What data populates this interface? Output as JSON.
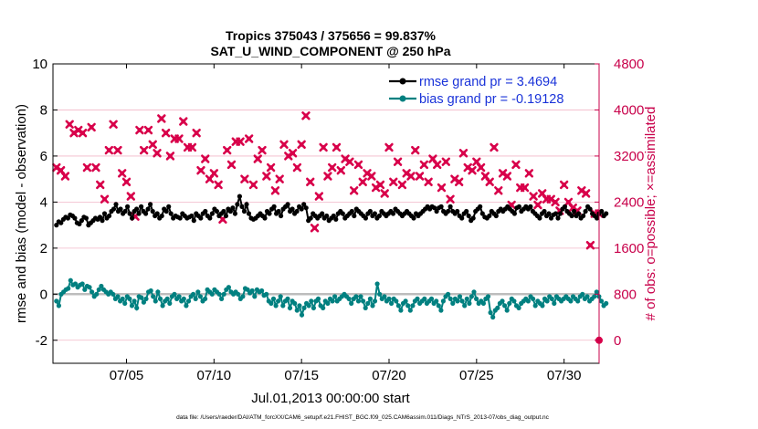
{
  "chart_data": {
    "type": "line",
    "title_line1": "Tropics 375043 / 375656 = 99.837%",
    "title_line2": "SAT_U_WIND_COMPONENT @ 250 hPa",
    "xlabel": "Jul.01,2013 00:00:00 start",
    "ylabel_left": "rmse and bias (model - observation)",
    "ylabel_right": "# of obs: o=possible; ×=assimilated",
    "footnote": "data file: /Users/raeder/DAI/ATM_forcXX/CAM6_setup/f.e21.FHIST_BGC.f09_025.CAM6assim.011/Diags_NTrS_2013-07/obs_diag_output.nc",
    "xlim": [
      0.8,
      32
    ],
    "x_ticks": [
      5,
      10,
      15,
      20,
      25,
      30
    ],
    "x_tick_labels": [
      "07/05",
      "07/10",
      "07/15",
      "07/20",
      "07/25",
      "07/30"
    ],
    "ylim_left": [
      -3,
      10
    ],
    "y_ticks_left": [
      -2,
      0,
      2,
      4,
      6,
      8,
      10
    ],
    "ylim_right": [
      -400,
      4800
    ],
    "y_ticks_right": [
      0,
      800,
      1600,
      2400,
      3200,
      4000,
      4800
    ],
    "colors": {
      "rmse": "#000000",
      "bias": "#008080",
      "obs": "#d8004a",
      "zero_line": "#bdbdbd",
      "grid": "#f2b7c8",
      "right_axis": "#c8004a",
      "legend_text": "#1a33d9"
    },
    "series": [
      {
        "name": "rmse grand pr = 3.4694",
        "role": "rmse",
        "values": [
          3.0,
          3.15,
          3.1,
          3.25,
          3.35,
          3.3,
          3.45,
          3.4,
          3.3,
          3.1,
          3.05,
          3.2,
          3.35,
          3.3,
          3.0,
          3.1,
          3.2,
          3.3,
          3.25,
          3.35,
          3.2,
          3.5,
          3.3,
          3.4,
          3.6,
          3.7,
          3.9,
          3.6,
          3.7,
          3.5,
          3.6,
          3.8,
          3.5,
          3.3,
          3.6,
          3.7,
          3.5,
          3.8,
          3.6,
          3.5,
          3.7,
          3.9,
          3.6,
          3.4,
          3.5,
          3.3,
          3.4,
          3.7,
          3.6,
          3.8,
          3.5,
          3.3,
          3.4,
          3.35,
          3.3,
          3.5,
          3.4,
          3.3,
          3.35,
          3.4,
          3.2,
          3.5,
          3.4,
          3.3,
          3.5,
          3.6,
          3.4,
          3.3,
          3.5,
          3.7,
          3.6,
          3.4,
          3.5,
          3.6,
          3.4,
          3.7,
          3.6,
          3.75,
          3.5,
          3.9,
          4.25,
          3.8,
          3.6,
          3.9,
          3.5,
          3.3,
          3.25,
          3.3,
          3.4,
          3.5,
          3.4,
          3.3,
          3.6,
          3.5,
          3.7,
          3.8,
          3.5,
          3.6,
          3.4,
          3.7,
          3.8,
          3.9,
          3.6,
          3.7,
          3.5,
          3.6,
          3.8,
          3.7,
          3.9,
          3.75,
          3.2,
          3.3,
          3.5,
          3.4,
          3.3,
          3.4,
          3.5,
          3.3,
          3.4,
          3.2,
          3.3,
          3.4,
          3.25,
          3.5,
          3.6,
          3.5,
          3.3,
          3.4,
          3.5,
          3.6,
          3.4,
          3.7,
          3.6,
          3.5,
          3.4,
          3.3,
          3.5,
          3.6,
          3.4,
          3.5,
          3.3,
          3.4,
          3.6,
          3.5,
          3.4,
          3.5,
          3.6,
          3.5,
          3.7,
          3.6,
          3.5,
          3.4,
          3.5,
          3.6,
          3.5,
          3.4,
          3.3,
          3.5,
          3.4,
          3.5,
          3.6,
          3.7,
          3.8,
          3.7,
          3.8,
          3.75,
          3.6,
          3.75,
          3.8,
          3.6,
          3.5,
          3.6,
          3.8,
          3.6,
          3.5,
          3.6,
          3.4,
          3.3,
          3.5,
          3.6,
          3.4,
          3.2,
          3.3,
          3.6,
          3.7,
          3.8,
          3.5,
          3.35,
          3.3,
          3.4,
          3.6,
          3.5,
          3.4,
          3.6,
          3.7,
          3.6,
          3.7,
          3.8,
          3.7,
          3.6,
          3.5,
          3.75,
          3.8,
          3.6,
          3.7,
          3.8,
          3.7,
          3.8,
          3.6,
          3.5,
          3.4,
          3.3,
          3.5,
          3.6,
          3.4,
          3.5,
          3.3,
          3.45,
          3.5,
          3.3,
          3.5,
          3.7,
          3.8,
          3.6,
          3.5,
          3.4,
          3.6,
          3.4,
          3.5,
          3.3,
          3.4,
          3.6,
          3.8,
          3.7,
          3.5,
          3.4,
          3.3,
          3.5,
          3.6,
          3.4,
          3.5
        ]
      },
      {
        "name": "bias grand pr = -0.19128",
        "role": "bias",
        "values": [
          -0.3,
          -0.5,
          0.0,
          0.1,
          0.2,
          0.25,
          0.6,
          0.4,
          0.45,
          0.3,
          0.4,
          0.45,
          0.2,
          0.35,
          0.3,
          0.1,
          -0.1,
          0.0,
          0.2,
          0.35,
          0.2,
          0.1,
          0.0,
          0.1,
          0.0,
          -0.2,
          -0.1,
          -0.3,
          -0.2,
          -0.4,
          -0.1,
          -0.2,
          -0.5,
          -0.3,
          -0.6,
          -0.1,
          -0.15,
          -0.35,
          -0.2,
          0.1,
          0.15,
          -0.1,
          -0.3,
          0.1,
          -0.2,
          -0.5,
          -0.3,
          -0.2,
          -0.4,
          -0.1,
          0.0,
          -0.2,
          -0.1,
          -0.3,
          -0.2,
          -0.5,
          -0.3,
          -0.1,
          0.0,
          -0.2,
          0.1,
          -0.1,
          -0.3,
          -0.2,
          0.2,
          0.1,
          0.0,
          0.2,
          0.1,
          0.0,
          -0.2,
          0.0,
          0.2,
          0.3,
          0.1,
          0.0,
          0.1,
          0.0,
          -0.2,
          -0.1,
          0.25,
          0.2,
          0.05,
          0.15,
          -0.1,
          0.2,
          0.1,
          0.15,
          -0.05,
          0.0,
          -0.3,
          -0.4,
          -0.2,
          -0.5,
          -0.3,
          -0.1,
          -0.5,
          -0.3,
          -0.2,
          -0.6,
          -0.3,
          -0.4,
          -0.7,
          -0.5,
          -0.9,
          -0.6,
          -0.4,
          -0.5,
          -0.3,
          -0.6,
          -0.3,
          -0.2,
          -0.5,
          -0.6,
          -0.3,
          -0.4,
          -0.2,
          -0.3,
          -0.1,
          -0.3,
          -0.2,
          -0.1,
          0.0,
          -0.1,
          -0.2,
          -0.4,
          -0.2,
          -0.1,
          -0.3,
          -0.1,
          -0.3,
          -0.6,
          -0.4,
          -0.2,
          -0.5,
          -0.3,
          0.45,
          0.0,
          -0.2,
          -0.1,
          -0.3,
          -0.2,
          -0.4,
          -0.2,
          -0.3,
          -0.5,
          -0.7,
          -0.4,
          -0.3,
          -0.5,
          -0.7,
          -0.5,
          -0.3,
          -0.2,
          -0.4,
          -0.3,
          -0.2,
          -0.4,
          -0.3,
          -0.2,
          -0.4,
          -0.3,
          -0.5,
          -0.7,
          -0.3,
          -0.1,
          0.0,
          -0.2,
          -0.4,
          -0.2,
          -0.3,
          -0.1,
          -0.3,
          -0.5,
          -0.2,
          -0.4,
          -0.1,
          0.1,
          -0.2,
          -0.4,
          -0.3,
          -0.4,
          -0.2,
          -0.1,
          -0.8,
          -1.0,
          -0.7,
          -0.6,
          -0.4,
          -0.3,
          -0.5,
          -0.7,
          -0.4,
          -0.2,
          -0.3,
          -0.5,
          -0.6,
          -0.4,
          -0.3,
          -0.2,
          -0.3,
          -0.1,
          -0.2,
          -0.5,
          -0.3,
          -0.4,
          -0.5,
          -0.2,
          -0.3,
          -0.1,
          -0.2,
          -0.4,
          -0.1,
          -0.2,
          -0.3,
          -0.2,
          -0.1,
          -0.2,
          -0.3,
          -0.1,
          -0.2,
          -0.3,
          -0.1,
          0.0,
          -0.2,
          -0.1,
          -0.3,
          -0.2,
          -0.1,
          0.1,
          -0.1,
          -0.3,
          -0.5,
          -0.4
        ]
      }
    ],
    "obs_assimilated": {
      "name": "# of obs assimilated",
      "x": [
        1.0,
        1.25,
        1.5,
        1.75,
        2.0,
        2.25,
        2.5,
        2.75,
        3.0,
        3.25,
        3.5,
        3.75,
        4.0,
        4.25,
        4.5,
        4.75,
        5.0,
        5.25,
        5.5,
        5.75,
        6.0,
        6.25,
        6.5,
        6.75,
        7.0,
        7.25,
        7.5,
        7.75,
        8.0,
        8.25,
        8.5,
        8.75,
        9.0,
        9.25,
        9.5,
        9.75,
        10.0,
        10.25,
        10.5,
        10.75,
        11.0,
        11.25,
        11.5,
        11.75,
        12.0,
        12.25,
        12.5,
        12.75,
        13.0,
        13.25,
        13.5,
        13.75,
        14.0,
        14.25,
        14.5,
        14.75,
        15.0,
        15.25,
        15.5,
        15.75,
        16.0,
        16.25,
        16.5,
        16.75,
        17.0,
        17.25,
        17.5,
        17.75,
        18.0,
        18.25,
        18.5,
        18.75,
        19.0,
        19.25,
        19.5,
        19.75,
        20.0,
        20.25,
        20.5,
        20.75,
        21.0,
        21.25,
        21.5,
        21.75,
        22.0,
        22.25,
        22.5,
        22.75,
        23.0,
        23.25,
        23.5,
        23.75,
        24.0,
        24.25,
        24.5,
        24.75,
        25.0,
        25.25,
        25.5,
        25.75,
        26.0,
        26.25,
        26.5,
        26.75,
        27.0,
        27.25,
        27.5,
        27.75,
        28.0,
        28.25,
        28.5,
        28.75,
        29.0,
        29.25,
        29.5,
        29.75,
        30.0,
        30.25,
        30.5,
        30.75,
        31.0,
        31.25,
        31.5,
        31.75,
        32.0
      ],
      "values": [
        3000,
        2950,
        2850,
        3750,
        3600,
        3650,
        3600,
        3000,
        3700,
        3000,
        2700,
        2450,
        3300,
        3750,
        3300,
        2900,
        2750,
        2500,
        2150,
        3650,
        3300,
        3650,
        3400,
        3250,
        3850,
        3600,
        3200,
        3500,
        3500,
        3800,
        3350,
        3350,
        3600,
        2950,
        3150,
        2800,
        2900,
        2700,
        2100,
        3300,
        3050,
        3450,
        3450,
        2800,
        3500,
        2700,
        3150,
        3300,
        2850,
        3000,
        2600,
        2800,
        3400,
        3200,
        3250,
        3000,
        3400,
        3900,
        2750,
        1950,
        2500,
        3350,
        2850,
        3000,
        3350,
        2950,
        3150,
        3100,
        2600,
        3050,
        2750,
        2900,
        2850,
        2650,
        2700,
        2550,
        3350,
        2750,
        3100,
        2700,
        2900,
        2850,
        3300,
        2850,
        3050,
        2750,
        3150,
        3050,
        2650,
        3100,
        2450,
        2800,
        2750,
        3250,
        3000,
        2950,
        3100,
        3000,
        2850,
        2750,
        3350,
        2600,
        2900,
        2850,
        2350,
        3050,
        2650,
        2650,
        2900,
        2500,
        2350,
        2550,
        2450,
        2450,
        2400,
        2250,
        2700,
        2400,
        2300,
        2250,
        2600,
        2550,
        1650,
        2200,
        2200
      ]
    },
    "obs_possible": {
      "name": "# of obs possible",
      "x": [
        32.0
      ],
      "values": [
        0
      ]
    },
    "legend_position": "top-right"
  }
}
